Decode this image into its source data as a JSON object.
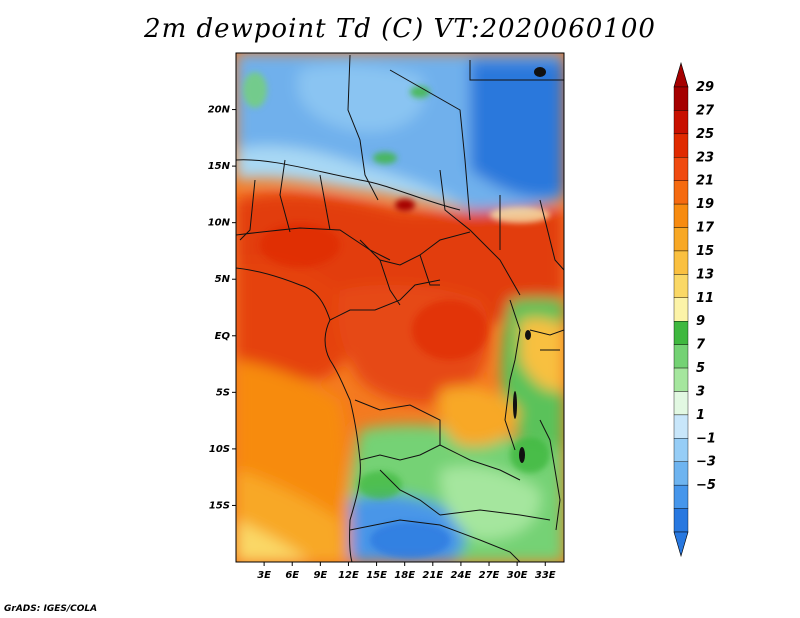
{
  "title": "2m dewpoint Td (C) VT:2020060100",
  "footer": "GrADS: IGES/COLA",
  "map": {
    "lon_range": [
      0,
      35
    ],
    "lat_range": [
      -20,
      25
    ],
    "x_ticks": [
      {
        "value": 3,
        "label": "3E"
      },
      {
        "value": 6,
        "label": "6E"
      },
      {
        "value": 9,
        "label": "9E"
      },
      {
        "value": 12,
        "label": "12E"
      },
      {
        "value": 15,
        "label": "15E"
      },
      {
        "value": 18,
        "label": "18E"
      },
      {
        "value": 21,
        "label": "21E"
      },
      {
        "value": 24,
        "label": "24E"
      },
      {
        "value": 27,
        "label": "27E"
      },
      {
        "value": 30,
        "label": "30E"
      },
      {
        "value": 33,
        "label": "33E"
      }
    ],
    "y_ticks": [
      {
        "value": 20,
        "label": "20N"
      },
      {
        "value": 15,
        "label": "15N"
      },
      {
        "value": 10,
        "label": "10N"
      },
      {
        "value": 5,
        "label": "5N"
      },
      {
        "value": 0,
        "label": "EQ"
      },
      {
        "value": -5,
        "label": "5S"
      },
      {
        "value": -10,
        "label": "10S"
      },
      {
        "value": -15,
        "label": "15S"
      }
    ]
  },
  "colorbar": {
    "labels": [
      "29",
      "27",
      "25",
      "23",
      "21",
      "19",
      "17",
      "15",
      "13",
      "11",
      "9",
      "7",
      "5",
      "3",
      "1",
      "−1",
      "−3",
      "−5"
    ],
    "colors": [
      "#a50000",
      "#c81000",
      "#e02a00",
      "#f04a10",
      "#f56a10",
      "#f78b10",
      "#f8a825",
      "#fac040",
      "#fad866",
      "#fcf3a8",
      "#3fb83f",
      "#74d274",
      "#a5e69e",
      "#e2f8e2",
      "#c8e6fa",
      "#96cdf6",
      "#6eb4f0",
      "#4696eb",
      "#2878e0"
    ],
    "arrow_top": "#a50000",
    "arrow_bottom": "#2878e0"
  }
}
